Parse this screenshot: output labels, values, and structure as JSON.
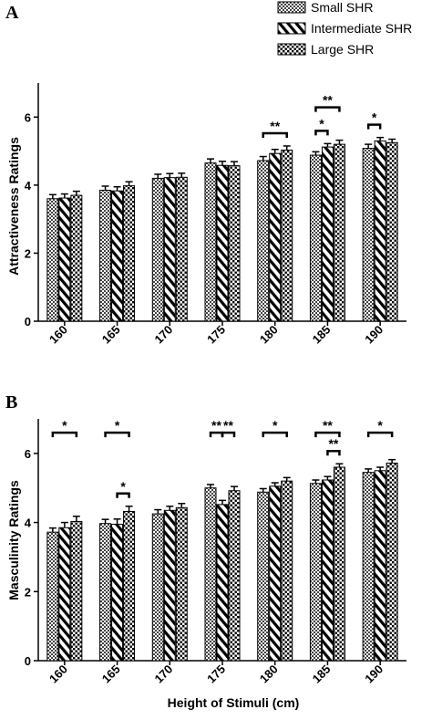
{
  "legend": {
    "items": [
      {
        "label": "Small SHR",
        "pattern": "check"
      },
      {
        "label": "Intermediate SHR",
        "pattern": "diag"
      },
      {
        "label": "Large SHR",
        "pattern": "dots"
      }
    ]
  },
  "x_axis_label": "Height of Stimuli (cm)",
  "chart_data": [
    {
      "type": "bar",
      "panel": "A",
      "ylabel": "Attractiveness Ratings",
      "ylim": [
        0,
        7
      ],
      "yticks": [
        0,
        2,
        4,
        6
      ],
      "categories": [
        "160",
        "165",
        "170",
        "175",
        "180",
        "185",
        "190"
      ],
      "series": [
        {
          "name": "Small SHR",
          "values": [
            3.6,
            3.85,
            4.2,
            4.65,
            4.72,
            4.88,
            5.08
          ],
          "errors": [
            0.12,
            0.12,
            0.12,
            0.12,
            0.12,
            0.1,
            0.12
          ]
        },
        {
          "name": "Intermediate SHR",
          "values": [
            3.62,
            3.83,
            4.22,
            4.58,
            4.93,
            5.12,
            5.3
          ],
          "errors": [
            0.12,
            0.12,
            0.12,
            0.12,
            0.12,
            0.1,
            0.1
          ]
        },
        {
          "name": "Large SHR",
          "values": [
            3.7,
            3.98,
            4.23,
            4.57,
            5.03,
            5.2,
            5.25
          ],
          "errors": [
            0.12,
            0.12,
            0.12,
            0.12,
            0.12,
            0.12,
            0.1
          ]
        }
      ],
      "annotations": [
        {
          "text": "**",
          "group": 4,
          "from": 0,
          "to": 2,
          "level": 1
        },
        {
          "text": "*",
          "group": 5,
          "from": 0,
          "to": 1,
          "level": 1
        },
        {
          "text": "**",
          "group": 5,
          "from": 0,
          "to": 2,
          "level": 2
        },
        {
          "text": "*",
          "group": 6,
          "from": 0,
          "to": 1,
          "level": 1
        }
      ]
    },
    {
      "type": "bar",
      "panel": "B",
      "ylabel": "Masculinity Ratings",
      "ylim": [
        0,
        7
      ],
      "yticks": [
        0,
        2,
        4,
        6
      ],
      "categories": [
        "160",
        "165",
        "170",
        "175",
        "180",
        "185",
        "190"
      ],
      "series": [
        {
          "name": "Small SHR",
          "values": [
            3.72,
            3.97,
            4.25,
            5.0,
            4.88,
            5.13,
            5.45
          ],
          "errors": [
            0.12,
            0.12,
            0.12,
            0.1,
            0.1,
            0.1,
            0.1
          ]
        },
        {
          "name": "Intermediate SHR",
          "values": [
            3.85,
            3.95,
            4.35,
            4.52,
            5.05,
            5.23,
            5.5
          ],
          "errors": [
            0.15,
            0.15,
            0.12,
            0.12,
            0.1,
            0.1,
            0.1
          ]
        },
        {
          "name": "Large SHR",
          "values": [
            4.03,
            4.32,
            4.43,
            4.92,
            5.2,
            5.6,
            5.72
          ],
          "errors": [
            0.15,
            0.15,
            0.12,
            0.12,
            0.1,
            0.1,
            0.1
          ]
        }
      ],
      "annotations": [
        {
          "text": "*",
          "group": 0,
          "from": 0,
          "to": 2,
          "level": 2
        },
        {
          "text": "*",
          "group": 1,
          "from": 0,
          "to": 2,
          "level": 2
        },
        {
          "text": "*",
          "group": 1,
          "from": 1,
          "to": 2,
          "level": 1
        },
        {
          "text": "**",
          "group": 3,
          "from": 0,
          "to": 1,
          "level": 2
        },
        {
          "text": "**",
          "group": 3,
          "from": 1,
          "to": 2,
          "level": 2
        },
        {
          "text": "*",
          "group": 4,
          "from": 0,
          "to": 2,
          "level": 2
        },
        {
          "text": "**",
          "group": 5,
          "from": 0,
          "to": 2,
          "level": 2
        },
        {
          "text": "**",
          "group": 5,
          "from": 1,
          "to": 2,
          "level": 1
        },
        {
          "text": "*",
          "group": 6,
          "from": 0,
          "to": 2,
          "level": 2
        }
      ]
    }
  ]
}
